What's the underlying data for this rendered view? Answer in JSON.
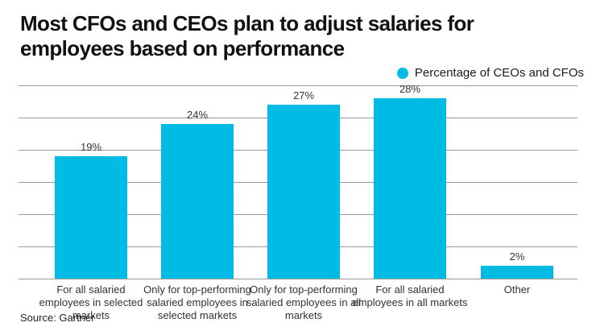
{
  "title": "Most CFOs and CEOs plan to adjust salaries for employees based on performance",
  "legend": {
    "label": "Percentage of CEOs and CFOs",
    "marker_color": "#00bce4"
  },
  "source": "Source: Gartner",
  "chart_data": {
    "type": "bar",
    "title": "Most CFOs and CEOs plan to adjust salaries for employees based on performance",
    "series_name": "Percentage of CEOs and CFOs",
    "categories": [
      "For all salaried employees in selected markets",
      "Only for top-performing salaried employees in selected markets",
      "Only for top-performing salaried employees in all markets",
      "For all salaried employees in all markets",
      "Other"
    ],
    "category_lines": [
      [
        "For all salaried",
        "employees in selected",
        "markets"
      ],
      [
        "Only for top-performing",
        "salaried employees in",
        "selected markets"
      ],
      [
        "Only for top-performing",
        "salaried employees in all",
        "markets"
      ],
      [
        "For all salaried",
        "employees in all markets"
      ],
      [
        "Other"
      ]
    ],
    "values": [
      19,
      24,
      27,
      28,
      2
    ],
    "value_labels": [
      "19%",
      "24%",
      "27%",
      "28%",
      "2%"
    ],
    "bar_color": "#00bce4",
    "gridline_color": "#999999",
    "ylabel": "",
    "xlabel": "",
    "ylim": [
      0,
      30
    ],
    "gridline_step": 5,
    "grid": "horizontal",
    "legend_position": "top-right",
    "source": "Source: Gartner"
  }
}
